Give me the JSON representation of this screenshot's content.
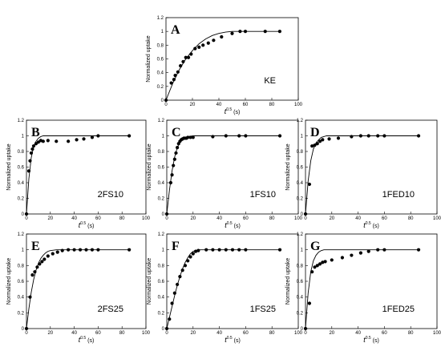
{
  "chart_data": [
    {
      "type": "scatter",
      "panel_letter": "A",
      "sample_label": "KE",
      "xlabel": "t^0.5 (s)",
      "ylabel": "Normalized uptake",
      "xlim": [
        0,
        100
      ],
      "ylim": [
        0,
        1.2
      ],
      "xticks": [
        0,
        20,
        40,
        60,
        80,
        100
      ],
      "yticks": [
        0,
        0.2,
        0.4,
        0.6,
        0.8,
        1,
        1.2
      ],
      "ytick_labels": [
        "0",
        "0.2",
        "0.4",
        "0.6",
        "0.8",
        "1",
        "1.2"
      ],
      "grid": false,
      "series": [
        {
          "kind": "measured",
          "x": [
            0,
            4,
            6,
            7,
            9,
            11,
            13,
            15,
            17,
            19,
            22,
            25,
            28,
            32,
            36,
            42,
            50,
            56,
            60,
            75,
            86
          ],
          "y": [
            0,
            0.25,
            0.3,
            0.36,
            0.41,
            0.5,
            0.56,
            0.62,
            0.62,
            0.67,
            0.75,
            0.77,
            0.8,
            0.83,
            0.87,
            0.92,
            0.97,
            1.0,
            1.0,
            1.0,
            1.0
          ]
        },
        {
          "kind": "model",
          "x": [
            0,
            5,
            10,
            15,
            20,
            25,
            30,
            35,
            40,
            45,
            50,
            55,
            60,
            70,
            80,
            86
          ],
          "y": [
            0,
            0.24,
            0.44,
            0.6,
            0.72,
            0.82,
            0.89,
            0.94,
            0.97,
            0.99,
            1.0,
            1.0,
            1.0,
            1.0,
            1.0,
            1.0
          ]
        }
      ]
    },
    {
      "type": "scatter",
      "panel_letter": "B",
      "sample_label": "2FS10",
      "xlabel": "t^0.5 (s)",
      "ylabel": "Normalized uptake",
      "xlim": [
        0,
        100
      ],
      "ylim": [
        0,
        1.2
      ],
      "xticks": [
        0,
        20,
        40,
        60,
        80,
        100
      ],
      "yticks": [
        0,
        0.2,
        0.4,
        0.6,
        0.8,
        1,
        1.2
      ],
      "ytick_labels": [
        "0",
        "0.2",
        "0.4",
        "0.6",
        "0.8",
        "1",
        "1.2"
      ],
      "grid": false,
      "series": [
        {
          "kind": "measured",
          "x": [
            0,
            2,
            3,
            4,
            5,
            6,
            8,
            10,
            12,
            14,
            18,
            25,
            35,
            42,
            48,
            55,
            60,
            86
          ],
          "y": [
            0,
            0.55,
            0.68,
            0.78,
            0.83,
            0.87,
            0.9,
            0.92,
            0.94,
            0.93,
            0.94,
            0.93,
            0.93,
            0.95,
            0.96,
            0.98,
            1.0,
            1.0
          ]
        },
        {
          "kind": "model",
          "x": [
            0,
            2,
            4,
            6,
            8,
            10,
            12,
            14,
            16,
            20,
            30,
            40,
            60,
            86
          ],
          "y": [
            0,
            0.45,
            0.72,
            0.86,
            0.93,
            0.97,
            0.99,
            1.0,
            1.0,
            1.0,
            1.0,
            1.0,
            1.0,
            1.0
          ]
        }
      ]
    },
    {
      "type": "scatter",
      "panel_letter": "C",
      "sample_label": "1FS10",
      "xlabel": "t^0.5 (s)",
      "ylabel": "Normalized uptake",
      "xlim": [
        0,
        100
      ],
      "ylim": [
        0,
        1.2
      ],
      "xticks": [
        0,
        20,
        40,
        60,
        80,
        100
      ],
      "yticks": [
        0,
        0.2,
        0.4,
        0.6,
        0.8,
        1,
        1.2
      ],
      "ytick_labels": [
        "0",
        "0.2",
        "0.4",
        "0.6",
        "0.8",
        "1",
        "1.2"
      ],
      "grid": false,
      "series": [
        {
          "kind": "measured",
          "x": [
            0,
            3,
            4,
            5,
            6,
            7,
            8,
            9,
            10,
            11,
            12,
            13,
            14,
            15,
            16,
            18,
            20,
            35,
            45,
            55,
            60,
            86
          ],
          "y": [
            0,
            0.4,
            0.5,
            0.62,
            0.7,
            0.78,
            0.85,
            0.9,
            0.93,
            0.95,
            0.96,
            0.97,
            0.97,
            0.97,
            0.98,
            0.98,
            0.98,
            0.99,
            1.0,
            1.0,
            1.0,
            1.0
          ]
        },
        {
          "kind": "model",
          "x": [
            0,
            2,
            4,
            6,
            8,
            10,
            12,
            14,
            16,
            20,
            30,
            40,
            60,
            86
          ],
          "y": [
            0,
            0.3,
            0.55,
            0.73,
            0.85,
            0.92,
            0.96,
            0.98,
            0.99,
            1.0,
            1.0,
            1.0,
            1.0,
            1.0
          ]
        }
      ]
    },
    {
      "type": "scatter",
      "panel_letter": "D",
      "sample_label": "1FED10",
      "xlabel": "t^0.5 (s)",
      "ylabel": "Normalized uptake",
      "xlim": [
        0,
        100
      ],
      "ylim": [
        0,
        1.2
      ],
      "xticks": [
        0,
        20,
        40,
        60,
        80,
        100
      ],
      "yticks": [
        0,
        0.2,
        0.4,
        0.6,
        0.8,
        1,
        1.2
      ],
      "ytick_labels": [
        "0",
        "0.2",
        "0.4",
        "0.6",
        "0.8",
        "1",
        "1.2"
      ],
      "grid": false,
      "series": [
        {
          "kind": "measured",
          "x": [
            0,
            3,
            5,
            7,
            9,
            11,
            13,
            18,
            25,
            35,
            42,
            48,
            55,
            60,
            86
          ],
          "y": [
            0,
            0.38,
            0.87,
            0.88,
            0.9,
            0.93,
            0.95,
            0.96,
            0.97,
            0.99,
            1.0,
            1.0,
            1.0,
            1.0,
            1.0
          ]
        },
        {
          "kind": "model",
          "x": [
            0,
            2,
            4,
            6,
            8,
            10,
            12,
            14,
            16,
            20,
            30,
            40,
            60,
            86
          ],
          "y": [
            0,
            0.42,
            0.68,
            0.83,
            0.91,
            0.95,
            0.98,
            0.99,
            1.0,
            1.0,
            1.0,
            1.0,
            1.0,
            1.0
          ]
        }
      ]
    },
    {
      "type": "scatter",
      "panel_letter": "E",
      "sample_label": "2FS25",
      "xlabel": "t^0.5 (s)",
      "ylabel": "Normalized uptake",
      "xlim": [
        0,
        100
      ],
      "ylim": [
        0,
        1.2
      ],
      "xticks": [
        0,
        20,
        40,
        60,
        80,
        100
      ],
      "yticks": [
        0,
        0.2,
        0.4,
        0.6,
        0.8,
        1,
        1.2
      ],
      "ytick_labels": [
        "0",
        "0.2",
        "0.4",
        "0.6",
        "0.8",
        "1",
        "1.2"
      ],
      "grid": false,
      "series": [
        {
          "kind": "measured",
          "x": [
            0,
            3,
            5,
            7,
            9,
            11,
            13,
            15,
            18,
            22,
            26,
            30,
            35,
            40,
            45,
            50,
            55,
            60,
            86
          ],
          "y": [
            0,
            0.4,
            0.68,
            0.72,
            0.78,
            0.82,
            0.85,
            0.88,
            0.92,
            0.95,
            0.97,
            0.99,
            1.0,
            1.0,
            1.0,
            1.0,
            1.0,
            1.0,
            1.0
          ]
        },
        {
          "kind": "model",
          "x": [
            0,
            2,
            4,
            6,
            8,
            10,
            12,
            14,
            16,
            18,
            20,
            25,
            30,
            40,
            60,
            86
          ],
          "y": [
            0,
            0.25,
            0.46,
            0.62,
            0.74,
            0.83,
            0.89,
            0.93,
            0.96,
            0.98,
            0.99,
            1.0,
            1.0,
            1.0,
            1.0,
            1.0
          ]
        }
      ]
    },
    {
      "type": "scatter",
      "panel_letter": "F",
      "sample_label": "1FS25",
      "xlabel": "t^0.5 (s)",
      "ylabel": "Normalized uptake",
      "xlim": [
        0,
        100
      ],
      "ylim": [
        0,
        1.2
      ],
      "xticks": [
        0,
        20,
        40,
        60,
        80,
        100
      ],
      "yticks": [
        0,
        0.2,
        0.4,
        0.6,
        0.8,
        1,
        1.2
      ],
      "ytick_labels": [
        "0",
        "0.2",
        "0.4",
        "0.6",
        "0.8",
        "1",
        "1.2"
      ],
      "grid": false,
      "series": [
        {
          "kind": "measured",
          "x": [
            0,
            2,
            4,
            6,
            8,
            10,
            12,
            14,
            16,
            18,
            20,
            22,
            24,
            30,
            35,
            40,
            45,
            50,
            55,
            60,
            86
          ],
          "y": [
            0,
            0.12,
            0.32,
            0.45,
            0.56,
            0.66,
            0.74,
            0.8,
            0.86,
            0.91,
            0.95,
            0.98,
            0.99,
            1.0,
            1.0,
            1.0,
            1.0,
            1.0,
            1.0,
            1.0,
            1.0
          ]
        },
        {
          "kind": "model",
          "x": [
            0,
            2,
            4,
            6,
            8,
            10,
            12,
            14,
            16,
            18,
            20,
            22,
            25,
            30,
            40,
            60,
            86
          ],
          "y": [
            0,
            0.14,
            0.28,
            0.42,
            0.55,
            0.66,
            0.76,
            0.84,
            0.9,
            0.95,
            0.98,
            0.99,
            1.0,
            1.0,
            1.0,
            1.0,
            1.0
          ]
        }
      ]
    },
    {
      "type": "scatter",
      "panel_letter": "G",
      "sample_label": "1FED25",
      "xlabel": "t^0.5 (s)",
      "ylabel": "Normalized uptake",
      "xlim": [
        0,
        100
      ],
      "ylim": [
        0,
        1.2
      ],
      "xticks": [
        0,
        20,
        40,
        60,
        80,
        100
      ],
      "yticks": [
        0,
        0.2,
        0.4,
        0.6,
        0.8,
        1,
        1.2
      ],
      "ytick_labels": [
        "0",
        "0.2",
        "0.4",
        "0.6",
        "0.8",
        "1",
        "1.2"
      ],
      "grid": false,
      "series": [
        {
          "kind": "measured",
          "x": [
            0,
            3,
            5,
            7,
            9,
            11,
            13,
            15,
            20,
            28,
            35,
            42,
            48,
            55,
            60,
            86
          ],
          "y": [
            0,
            0.32,
            0.72,
            0.78,
            0.8,
            0.82,
            0.84,
            0.85,
            0.87,
            0.9,
            0.93,
            0.96,
            0.98,
            1.0,
            1.0,
            1.0
          ]
        },
        {
          "kind": "model",
          "x": [
            0,
            2,
            4,
            6,
            8,
            10,
            12,
            14,
            16,
            20,
            30,
            40,
            60,
            86
          ],
          "y": [
            0,
            0.45,
            0.72,
            0.86,
            0.93,
            0.97,
            0.99,
            1.0,
            1.0,
            1.0,
            1.0,
            1.0,
            1.0,
            1.0
          ]
        }
      ]
    }
  ]
}
